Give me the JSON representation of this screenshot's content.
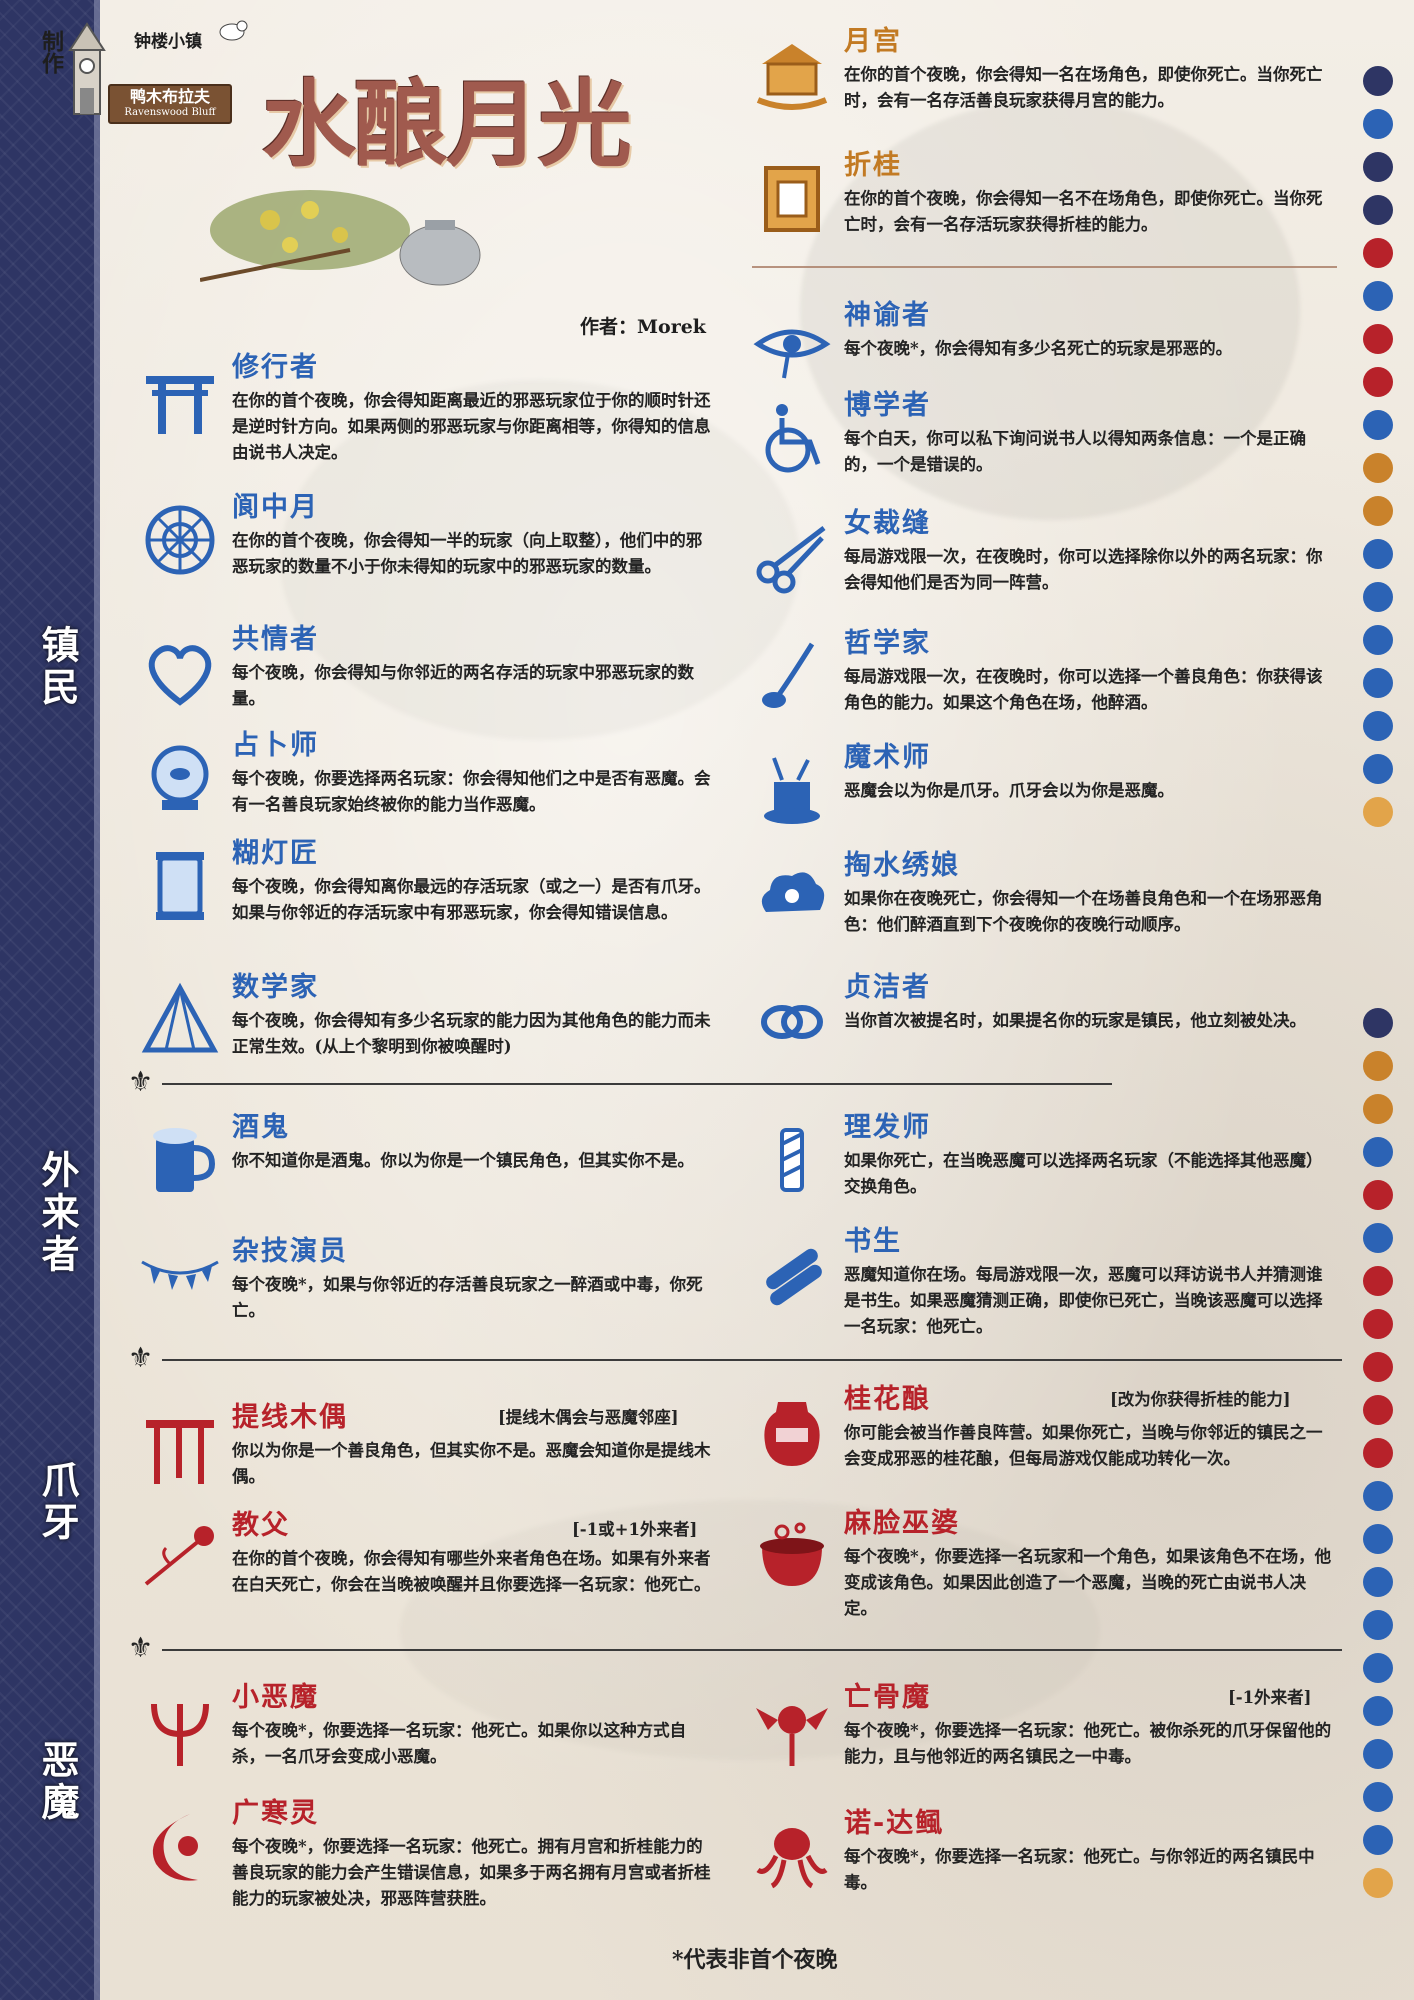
{
  "header": {
    "credit": "制作",
    "town_name": "钟楼小镇",
    "plank_label": "鸭木布拉夫",
    "plank_sub": "Ravenswood Bluff",
    "script_title": "水酿月光",
    "author": "作者：Morek"
  },
  "sections": {
    "townsfolk": "镇民",
    "outsiders": "外来者",
    "minions": "爪牙",
    "demons": "恶魔"
  },
  "roles": {
    "yuegong": {
      "name": "月宫",
      "icon": "moon-palace-icon",
      "desc": "在你的首个夜晚，你会得知一名在场角色，即使你死亡。当你死亡时，会有一名存活善良玩家获得月宫的能力。"
    },
    "zhegui": {
      "name": "折桂",
      "icon": "laurel-gate-icon",
      "desc": "在你的首个夜晚，你会得知一名不在场角色，即使你死亡。当你死亡时，会有一名存活玩家获得折桂的能力。"
    },
    "xiuxingzhe": {
      "name": "修行者",
      "icon": "torii-icon",
      "desc": "在你的首个夜晚，你会得知距离最近的邪恶玩家位于你的顺时针还是逆时针方向。如果两侧的邪恶玩家与你距离相等，你得知的信息由说书人决定。"
    },
    "shentouzhe": {
      "name": "神谕者",
      "icon": "eye-of-ra-icon",
      "desc": "每个夜晚*，你会得知有多少名死亡的玩家是邪恶的。"
    },
    "boxuezhe": {
      "name": "博学者",
      "icon": "wheelchair-icon",
      "desc": "每个白天，你可以私下询问说书人以得知两条信息：一个是正确的，一个是错误的。"
    },
    "guizhongyue": {
      "name": "阆中月",
      "icon": "web-wheel-icon",
      "desc": "在你的首个夜晚，你会得知一半的玩家（向上取整），他们中的邪恶玩家的数量不小于你未得知的玩家中的邪恶玩家的数量。"
    },
    "nvcaifeng": {
      "name": "女裁缝",
      "icon": "scissors-icon",
      "desc": "每局游戏限一次，在夜晚时，你可以选择除你以外的两名玩家：你会得知他们是否为同一阵营。"
    },
    "gongqingzhe": {
      "name": "共情者",
      "icon": "heart-icon",
      "desc": "每个夜晚，你会得知与你邻近的两名存活的玩家中邪恶玩家的数量。"
    },
    "zhexuejia": {
      "name": "哲学家",
      "icon": "pipe-icon",
      "desc": "每局游戏限一次，在夜晚时，你可以选择一个善良角色：你获得该角色的能力。如果这个角色在场，他醉酒。"
    },
    "zhanbushi": {
      "name": "占卜师",
      "icon": "crystal-ball-icon",
      "desc": "每个夜晚，你要选择两名玩家：你会得知他们之中是否有恶魔。会有一名善良玩家始终被你的能力当作恶魔。"
    },
    "moshushi": {
      "name": "魔术师",
      "icon": "magic-hat-icon",
      "desc": "恶魔会以为你是爪牙。爪牙会以为你是恶魔。"
    },
    "hudengjiang": {
      "name": "糊灯匠",
      "icon": "lantern-icon",
      "desc": "每个夜晚，你会得知离你最远的存活玩家（或之一）是否有爪牙。如果与你邻近的存活玩家中有邪恶玩家，你会得知错误信息。"
    },
    "taoshuixiuniang": {
      "name": "掏水绣娘",
      "icon": "cloud-icon",
      "desc": "如果你在夜晚死亡，你会得知一个在场善良角色和一个在场邪恶角色：他们醉酒直到下个夜晚你的夜晚行动顺序。"
    },
    "shuxuejia": {
      "name": "数学家",
      "icon": "triangle-icon",
      "desc": "每个夜晚，你会得知有多少名玩家的能力因为其他角色的能力而未正常生效。(从上个黎明到你被唤醒时)"
    },
    "zhenjiezhe": {
      "name": "贞洁者",
      "icon": "rings-icon",
      "desc": "当你首次被提名时，如果提名你的玩家是镇民，他立刻被处决。"
    },
    "jiugui": {
      "name": "酒鬼",
      "icon": "beer-mug-icon",
      "desc": "你不知道你是酒鬼。你以为你是一个镇民角色，但其实你不是。"
    },
    "lifashi": {
      "name": "理发师",
      "icon": "barber-pole-icon",
      "desc": "如果你死亡，在当晚恶魔可以选择两名玩家（不能选择其他恶魔）交换角色。"
    },
    "zajiyanyuan": {
      "name": "杂技演员",
      "icon": "bunting-icon",
      "desc": "每个夜晚*，如果与你邻近的存活善良玩家之一醉酒或中毒，你死亡。"
    },
    "shusheng": {
      "name": "书生",
      "icon": "scrolls-icon",
      "desc": "恶魔知道你在场。每局游戏限一次，恶魔可以拜访说书人并猜测谁是书生。如果恶魔猜测正确，即使你已死亡，当晚该恶魔可以选择一名玩家：他死亡。"
    },
    "tixianmuou": {
      "name": "提线木偶",
      "icon": "puppet-frame-icon",
      "desc": "你以为你是一个善良角色，但其实你不是。恶魔会知道你是提线木偶。",
      "note": "[提线木偶会与恶魔邻座]"
    },
    "guihuaniang": {
      "name": "桂花酿",
      "icon": "wine-jar-icon",
      "desc": "你可能会被当作善良阵营。如果你死亡，当晚与你邻近的镇民之一会变成邪恶的桂花酿，但每局游戏仅能成功转化一次。",
      "note": "[改为你获得折桂的能力]"
    },
    "jiaofu": {
      "name": "教父",
      "icon": "rose-icon",
      "desc": "在你的首个夜晚，你会得知有哪些外来者角色在场。如果有外来者在白天死亡，你会在当晚被唤醒并且你要选择一名玩家：他死亡。",
      "note": "[-1或+1外来者]"
    },
    "malianwupo": {
      "name": "麻脸巫婆",
      "icon": "cauldron-icon",
      "desc": "每个夜晚*，你要选择一名玩家和一个角色，如果该角色不在场，他变成该角色。如果因此创造了一个恶魔，当晚的死亡由说书人决定。"
    },
    "xiaoemo": {
      "name": "小恶魔",
      "icon": "trident-icon",
      "desc": "每个夜晚*，你要选择一名玩家：他死亡。如果你以这种方式自杀，一名爪牙会变成小恶魔。"
    },
    "wangguma": {
      "name": "亡骨魔",
      "icon": "skull-wings-icon",
      "desc": "每个夜晚*，你要选择一名玩家：他死亡。被你杀死的爪牙保留他的能力，且与他邻近的两名镇民之一中毒。",
      "note": "[-1外来者]"
    },
    "guanghanling": {
      "name": "广寒灵",
      "icon": "moon-spirit-icon",
      "desc": "每个夜晚*，你要选择一名玩家：他死亡。拥有月宫和折桂能力的善良玩家的能力会产生错误信息，如果多于两名拥有月宫或者折桂能力的玩家被处决，邪恶阵营获胜。"
    },
    "nuodaying": {
      "name": "诺-达鲺",
      "icon": "octopus-icon",
      "desc": "每个夜晚*，你要选择一名玩家：他死亡。与你邻近的两名镇民中毒。"
    }
  },
  "footnote": "*代表非首个夜晚",
  "colors": {
    "townsfolk_blue": "#2c63b5",
    "evil_red": "#b7222a",
    "sidebar_navy": "#2e3564"
  },
  "first_night_icons": [
    "moon-icon",
    "pipe-icon",
    "minion-info-icon",
    "demon-info-icon",
    "puppet-frame-icon",
    "scrolls-icon",
    "cauldron-icon",
    "rose-icon",
    "torii-icon",
    "moon-palace-icon",
    "laurel-gate-icon",
    "heart-icon",
    "crystal-ball-icon",
    "lantern-icon",
    "scissors-icon",
    "web-wheel-icon",
    "triangle-icon",
    "dawn-icon"
  ],
  "other_night_icons": [
    "moon-icon",
    "moon-palace-icon",
    "laurel-gate-icon",
    "pipe-icon",
    "wine-jar-icon",
    "scrolls-icon",
    "trident-icon",
    "moon-spirit-icon",
    "octopus-icon",
    "skull-wings-icon",
    "rose-icon",
    "bunting-icon",
    "barber-pole-icon",
    "cloud-icon",
    "heart-icon",
    "crystal-ball-icon",
    "lantern-icon",
    "eye-of-ra-icon",
    "scissors-icon",
    "triangle-icon",
    "dawn-icon"
  ]
}
